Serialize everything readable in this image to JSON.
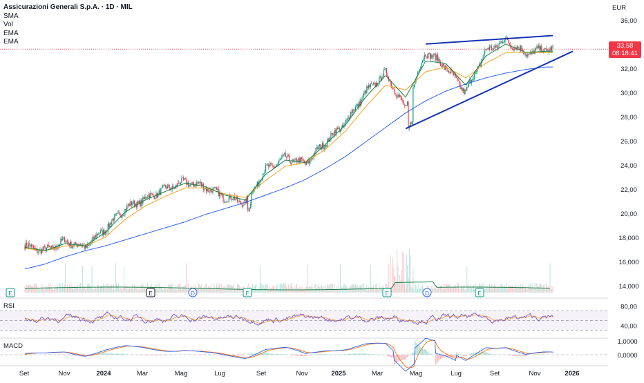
{
  "header": {
    "title": "Assicurazioni Generali S.p.A. · 1D · MIL",
    "indicators": [
      "SMA",
      "Vol",
      "EMA",
      "EMA"
    ],
    "currency": "EUR"
  },
  "price_scale": {
    "ticks": [
      "36,00",
      "34,00",
      "32,00",
      "30,00",
      "28,00",
      "26,00",
      "24,00",
      "22,00",
      "20,00",
      "18,000",
      "16,000",
      "14,000"
    ],
    "current_price": "33,58",
    "countdown": "08:18:41"
  },
  "rsi": {
    "label": "RSI",
    "ticks": [
      "80,00",
      "40,00"
    ]
  },
  "macd": {
    "label": "MACD",
    "ticks": [
      "1,0000",
      "0,0000"
    ]
  },
  "time_axis": [
    "Set",
    "Nov",
    "2024",
    "Mar",
    "Mag",
    "Lug",
    "Set",
    "Nov",
    "2025",
    "Mar",
    "Mag",
    "Lug",
    "Set",
    "Nov",
    "2026"
  ],
  "events": [
    "E",
    "E",
    "D",
    "E",
    "E",
    "D",
    "E"
  ],
  "colors": {
    "up": "#089981",
    "down": "#f23645",
    "sma": "#2962ff",
    "ema_fast": "#1b7c43",
    "ema_slow": "#f7a21b",
    "trendline": "#1435b4",
    "rsi": "#7e57c2",
    "rsi_signal": "#f7a21b",
    "macd": "#2962ff",
    "macd_signal": "#ff6d00",
    "volume_ma": "#1b7c43"
  },
  "chart_data": {
    "type": "candlestick",
    "symbol": "Assicurazioni Generali S.p.A.",
    "interval": "1D",
    "exchange": "MIL",
    "currency": "EUR",
    "ylim": [
      13.5,
      36.5
    ],
    "months": [
      "2023-09",
      "2023-10",
      "2023-11",
      "2023-12",
      "2024-01",
      "2024-02",
      "2024-03",
      "2024-04",
      "2024-05",
      "2024-06",
      "2024-07",
      "2024-08",
      "2024-09",
      "2024-10",
      "2024-11",
      "2024-12",
      "2025-01",
      "2025-02",
      "2025-03",
      "2025-04",
      "2025-05",
      "2025-06",
      "2025-07",
      "2025-08",
      "2025-09",
      "2025-10",
      "2025-11"
    ],
    "close_approx": [
      17.3,
      16.9,
      17.7,
      17.2,
      18.7,
      20.4,
      21.2,
      22.0,
      22.6,
      22.2,
      21.3,
      20.9,
      23.6,
      24.6,
      24.1,
      25.9,
      27.5,
      30.0,
      31.6,
      28.6,
      33.4,
      32.1,
      30.0,
      33.4,
      34.3,
      33.2,
      33.6
    ],
    "sma_approx": [
      15.4,
      15.8,
      16.4,
      16.9,
      17.3,
      17.8,
      18.3,
      18.8,
      19.3,
      19.9,
      20.4,
      20.9,
      21.5,
      22.1,
      22.8,
      23.7,
      24.7,
      25.9,
      27.1,
      28.3,
      29.3,
      30.1,
      30.7,
      31.2,
      31.6,
      31.9,
      32.1
    ],
    "ema_fast_approx": [
      17.2,
      16.9,
      17.5,
      17.3,
      18.4,
      20.1,
      21.1,
      21.8,
      22.5,
      22.2,
      21.5,
      21.1,
      23.2,
      24.4,
      24.2,
      25.7,
      27.3,
      29.6,
      31.4,
      29.6,
      32.6,
      32.4,
      30.6,
      33.0,
      34.0,
      33.3,
      33.4
    ],
    "ema_slow_approx": [
      17.1,
      16.9,
      17.3,
      17.3,
      18.0,
      19.5,
      20.6,
      21.4,
      22.1,
      22.1,
      21.6,
      21.3,
      22.7,
      23.9,
      24.2,
      25.3,
      26.8,
      28.8,
      30.6,
      30.2,
      31.7,
      32.1,
      31.2,
      32.4,
      33.3,
      33.3,
      33.3
    ],
    "current_price": 33.58,
    "trendlines": [
      {
        "name": "upper",
        "from": [
          "2025-05",
          34.0
        ],
        "to": [
          "2025-11",
          34.7
        ]
      },
      {
        "name": "lower",
        "from": [
          "2025-04",
          27.0
        ],
        "to": [
          "2025-12",
          33.4
        ]
      }
    ],
    "rsi": {
      "upper": 70,
      "lower": 30,
      "ticks": [
        80,
        40
      ]
    },
    "macd": {
      "ticks": [
        1.0,
        0.0
      ]
    }
  }
}
